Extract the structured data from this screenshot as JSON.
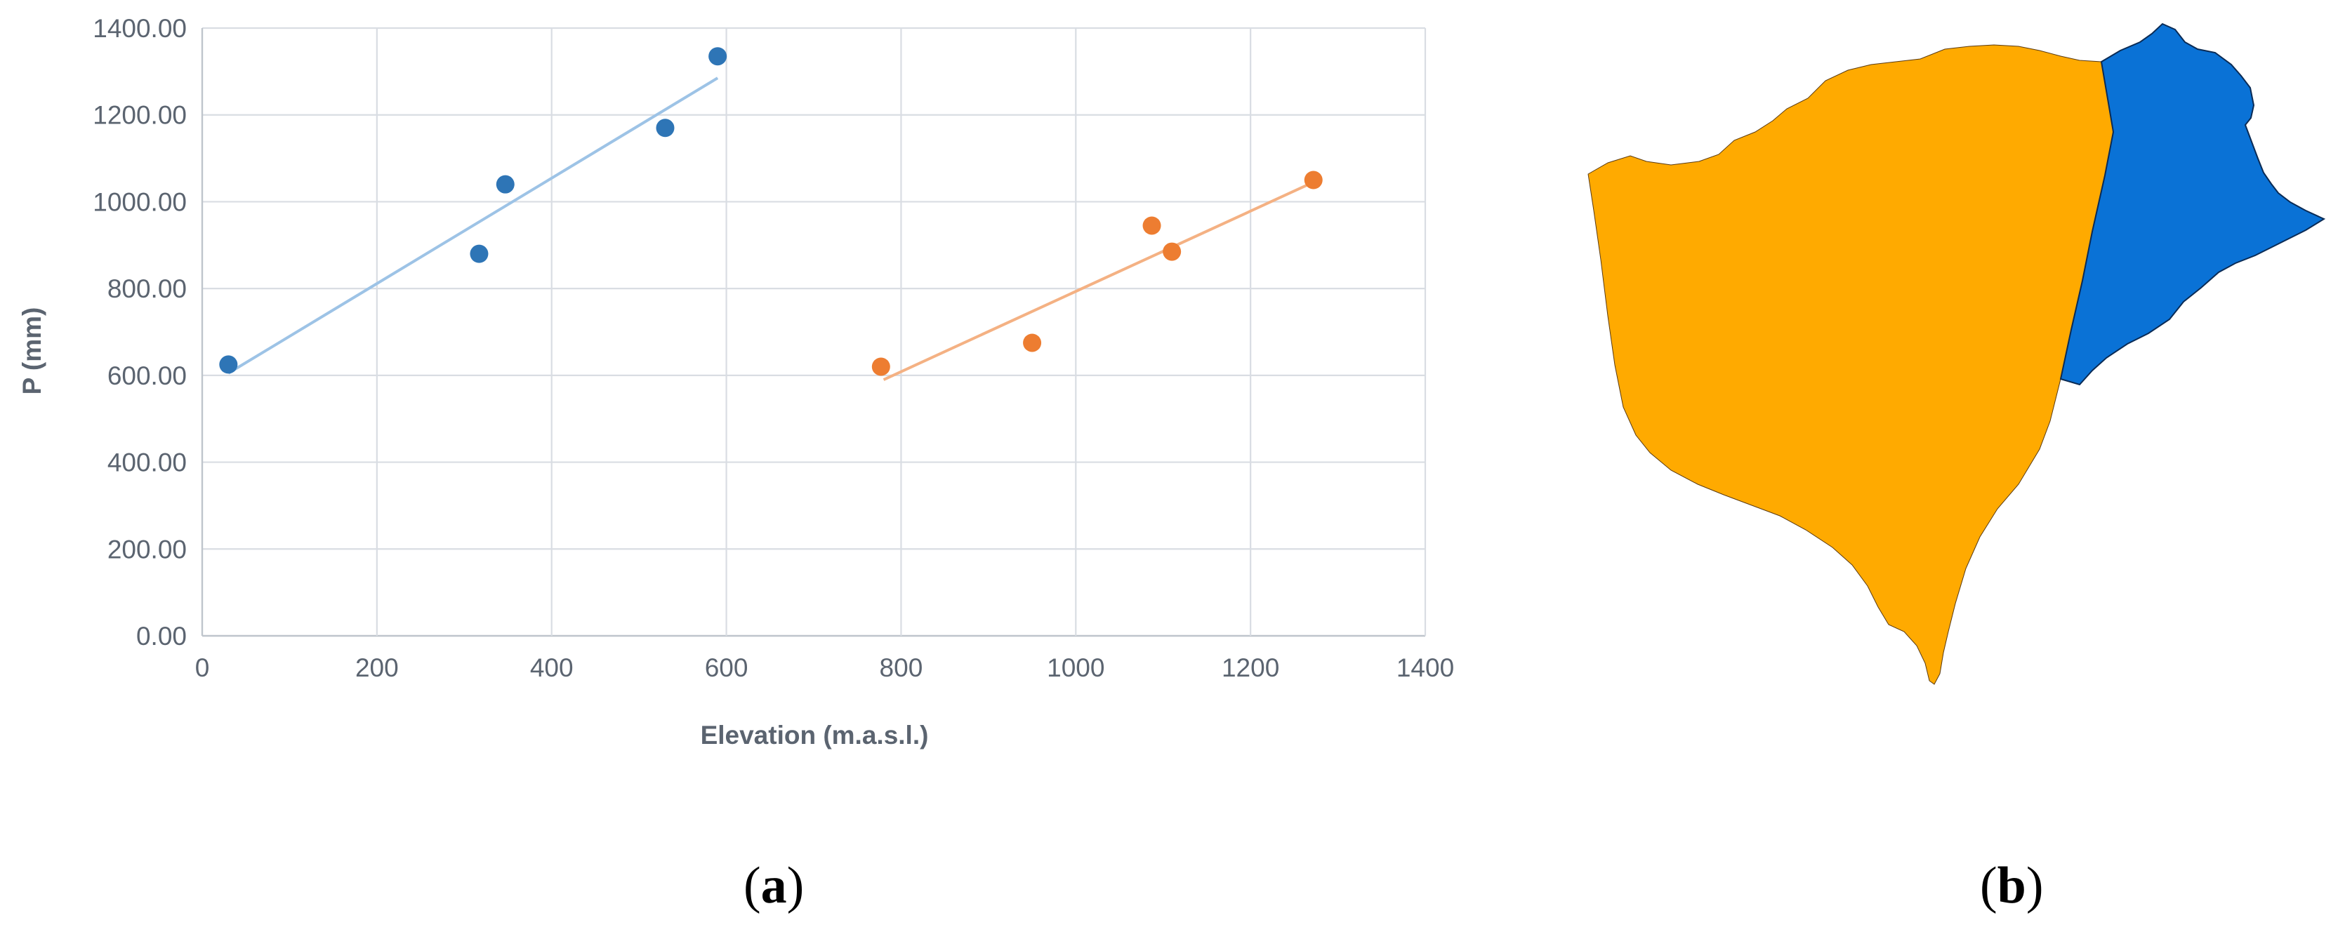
{
  "chart_data": {
    "type": "scatter",
    "xlabel": "Elevation (m.a.s.l.)",
    "ylabel": "P (mm)",
    "xlim": [
      0,
      1400
    ],
    "ylim": [
      0,
      1400
    ],
    "xticks": [
      "0",
      "200",
      "400",
      "600",
      "800",
      "1000",
      "1200",
      "1400"
    ],
    "yticks": [
      "0.00",
      "200.00",
      "400.00",
      "600.00",
      "800.00",
      "1000.00",
      "1200.00",
      "1400.00"
    ],
    "grid": true,
    "series": [
      {
        "color": "#2e75b6",
        "trend_color": "#9dc3e6",
        "points": [
          {
            "x": 30,
            "y": 625
          },
          {
            "x": 317,
            "y": 880
          },
          {
            "x": 347,
            "y": 1040
          },
          {
            "x": 530,
            "y": 1170
          },
          {
            "x": 590,
            "y": 1335
          }
        ],
        "trendline": [
          {
            "x": 30,
            "y": 605
          },
          {
            "x": 590,
            "y": 1285
          }
        ]
      },
      {
        "color": "#ed7d31",
        "trend_color": "#f4b183",
        "points": [
          {
            "x": 777,
            "y": 620
          },
          {
            "x": 950,
            "y": 675
          },
          {
            "x": 1087,
            "y": 945
          },
          {
            "x": 1110,
            "y": 885
          },
          {
            "x": 1272,
            "y": 1050
          }
        ],
        "trendline": [
          {
            "x": 780,
            "y": 590
          },
          {
            "x": 1272,
            "y": 1045
          }
        ]
      }
    ]
  },
  "map": {
    "region_colors": [
      "#ffaa00",
      "#0a72d6"
    ]
  },
  "labels": {
    "a": "a",
    "b": "b"
  }
}
